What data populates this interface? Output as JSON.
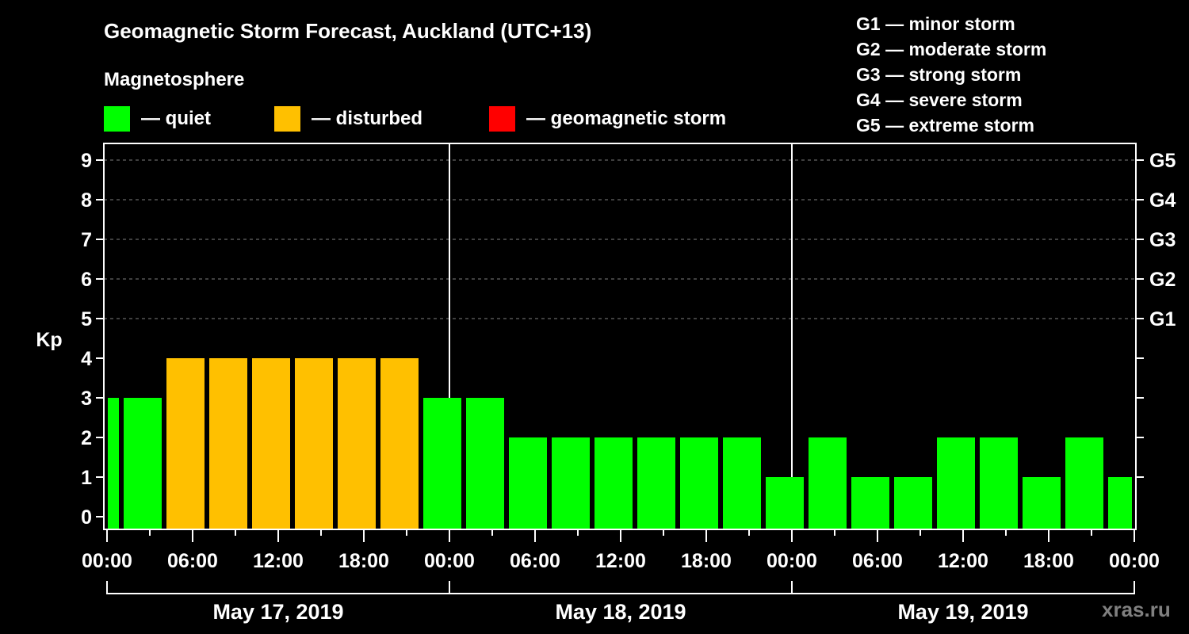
{
  "header": {
    "title": "Geomagnetic Storm Forecast, Auckland (UTC+13)",
    "subtitle": "Magnetosphere"
  },
  "legend": [
    {
      "label": "— quiet",
      "color": "#00ff00",
      "x": 131
    },
    {
      "label": "— disturbed",
      "color": "#ffc000",
      "x": 346
    },
    {
      "label": "— geomagnetic storm",
      "color": "#ff0000",
      "x": 617
    }
  ],
  "g_scale": [
    "G1 — minor storm",
    "G2 — moderate storm",
    "G3 — strong storm",
    "G4 — severe storm",
    "G5 — extreme storm"
  ],
  "watermark": "xras.ru",
  "chart_data": {
    "type": "bar",
    "title": "Geomagnetic Storm Forecast, Auckland (UTC+13)",
    "ylabel": "Kp",
    "ylim": [
      0,
      9
    ],
    "yticks": [
      0,
      1,
      2,
      3,
      4,
      5,
      6,
      7,
      8,
      9
    ],
    "right_ticks": [
      {
        "kp": 5,
        "label": "G1"
      },
      {
        "kp": 6,
        "label": "G2"
      },
      {
        "kp": 7,
        "label": "G3"
      },
      {
        "kp": 8,
        "label": "G4"
      },
      {
        "kp": 9,
        "label": "G5"
      }
    ],
    "grid": "dashed horizontal at Kp 5-9",
    "xtick_labels": [
      "00:00",
      "06:00",
      "12:00",
      "18:00",
      "00:00",
      "06:00",
      "12:00",
      "18:00",
      "00:00",
      "06:00",
      "12:00",
      "18:00",
      "00:00"
    ],
    "days": [
      "May 17, 2019",
      "May 18, 2019",
      "May 19, 2019"
    ],
    "colors": {
      "quiet": "#00ff00",
      "disturbed": "#ffc000",
      "storm": "#ff0000"
    },
    "bars": [
      {
        "start_h": 0,
        "end_h": 1,
        "kp": 3,
        "status": "quiet"
      },
      {
        "start_h": 1,
        "end_h": 4,
        "kp": 3,
        "status": "quiet"
      },
      {
        "start_h": 4,
        "end_h": 7,
        "kp": 4,
        "status": "disturbed"
      },
      {
        "start_h": 7,
        "end_h": 10,
        "kp": 4,
        "status": "disturbed"
      },
      {
        "start_h": 10,
        "end_h": 13,
        "kp": 4,
        "status": "disturbed"
      },
      {
        "start_h": 13,
        "end_h": 16,
        "kp": 4,
        "status": "disturbed"
      },
      {
        "start_h": 16,
        "end_h": 19,
        "kp": 4,
        "status": "disturbed"
      },
      {
        "start_h": 19,
        "end_h": 22,
        "kp": 4,
        "status": "disturbed"
      },
      {
        "start_h": 22,
        "end_h": 25,
        "kp": 3,
        "status": "quiet"
      },
      {
        "start_h": 25,
        "end_h": 28,
        "kp": 3,
        "status": "quiet"
      },
      {
        "start_h": 28,
        "end_h": 31,
        "kp": 2,
        "status": "quiet"
      },
      {
        "start_h": 31,
        "end_h": 34,
        "kp": 2,
        "status": "quiet"
      },
      {
        "start_h": 34,
        "end_h": 37,
        "kp": 2,
        "status": "quiet"
      },
      {
        "start_h": 37,
        "end_h": 40,
        "kp": 2,
        "status": "quiet"
      },
      {
        "start_h": 40,
        "end_h": 43,
        "kp": 2,
        "status": "quiet"
      },
      {
        "start_h": 43,
        "end_h": 46,
        "kp": 2,
        "status": "quiet"
      },
      {
        "start_h": 46,
        "end_h": 49,
        "kp": 1,
        "status": "quiet"
      },
      {
        "start_h": 49,
        "end_h": 52,
        "kp": 2,
        "status": "quiet"
      },
      {
        "start_h": 52,
        "end_h": 55,
        "kp": 1,
        "status": "quiet"
      },
      {
        "start_h": 55,
        "end_h": 58,
        "kp": 1,
        "status": "quiet"
      },
      {
        "start_h": 58,
        "end_h": 61,
        "kp": 2,
        "status": "quiet"
      },
      {
        "start_h": 61,
        "end_h": 64,
        "kp": 2,
        "status": "quiet"
      },
      {
        "start_h": 64,
        "end_h": 67,
        "kp": 1,
        "status": "quiet"
      },
      {
        "start_h": 67,
        "end_h": 70,
        "kp": 2,
        "status": "quiet"
      },
      {
        "start_h": 70,
        "end_h": 72,
        "kp": 1,
        "status": "quiet"
      }
    ]
  }
}
